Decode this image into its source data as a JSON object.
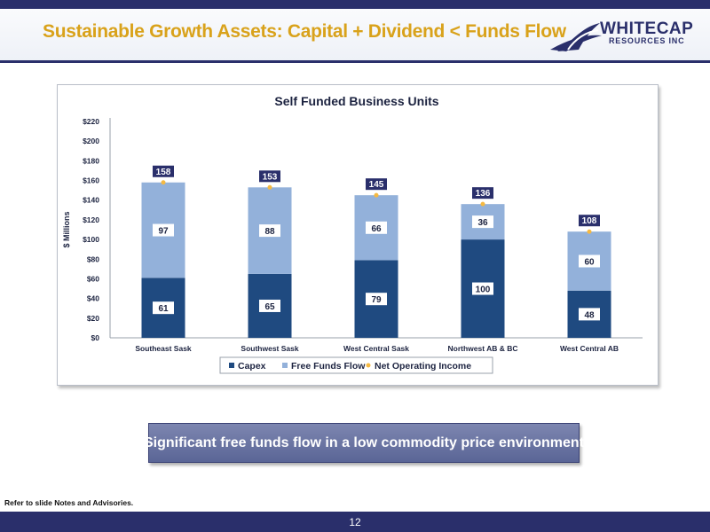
{
  "header": {
    "title": "Sustainable Growth Assets:  Capital + Dividend < Funds Flow",
    "logo_main": "WHITECAP",
    "logo_sub": "RESOURCES INC"
  },
  "colors": {
    "title": "#d9a21b",
    "navy": "#2a2f6b",
    "capex": "#1f4a80",
    "free_funds_flow": "#93b1da",
    "net_operating_income": "#f5b942"
  },
  "chart_data": {
    "type": "bar",
    "stacked": true,
    "title": "Self Funded Business Units",
    "xlabel": "",
    "ylabel": "$ Millions",
    "ylim": [
      0,
      220
    ],
    "yticks": [
      "$0",
      "$20",
      "$40",
      "$60",
      "$80",
      "$100",
      "$120",
      "$140",
      "$160",
      "$180",
      "$200",
      "$220"
    ],
    "categories": [
      "Southeast Sask",
      "Southwest Sask",
      "West Central Sask",
      "Northwest AB & BC",
      "West Central AB"
    ],
    "series": [
      {
        "name": "Capex",
        "type": "bar",
        "values": [
          61,
          65,
          79,
          100,
          48
        ]
      },
      {
        "name": "Free Funds Flow",
        "type": "bar",
        "values": [
          97,
          88,
          66,
          36,
          60
        ]
      },
      {
        "name": "Net Operating Income",
        "type": "point",
        "values": [
          158,
          153,
          145,
          136,
          108
        ]
      }
    ],
    "legend_position": "bottom",
    "grid": false
  },
  "callout": "Significant free funds flow in a low commodity price environment",
  "notes": "Refer to slide Notes and Advisories.",
  "page_number": "12"
}
